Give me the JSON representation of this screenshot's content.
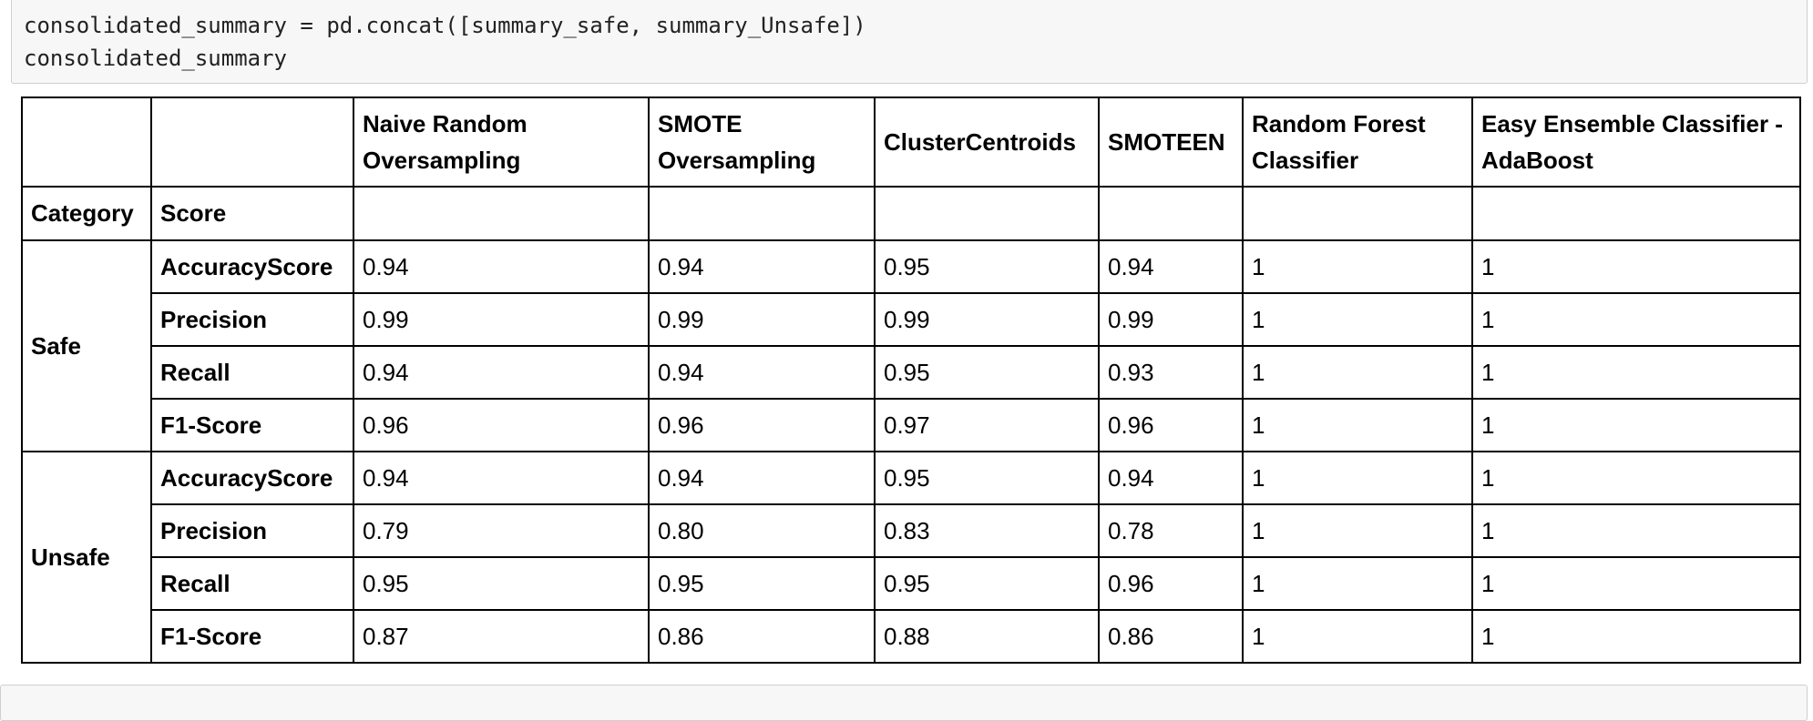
{
  "code_cell": {
    "lines": [
      "consolidated_summary = pd.concat([summary_safe, summary_Unsafe])",
      "consolidated_summary"
    ]
  },
  "table": {
    "columns": [
      "Naive Random Oversampling",
      "SMOTE Oversampling",
      "ClusterCentroids",
      "SMOTEEN",
      "Random Forest Classifier",
      "Easy Ensemble Classifier -AdaBoost"
    ],
    "index_names": [
      "Category",
      "Score"
    ],
    "groups": [
      {
        "category": "Safe",
        "rows": [
          {
            "score": "AccuracyScore",
            "values": [
              "0.94",
              "0.94",
              "0.95",
              "0.94",
              "1",
              "1"
            ]
          },
          {
            "score": "Precision",
            "values": [
              "0.99",
              "0.99",
              "0.99",
              "0.99",
              "1",
              "1"
            ]
          },
          {
            "score": "Recall",
            "values": [
              "0.94",
              "0.94",
              "0.95",
              "0.93",
              "1",
              "1"
            ]
          },
          {
            "score": "F1-Score",
            "values": [
              "0.96",
              "0.96",
              "0.97",
              "0.96",
              "1",
              "1"
            ]
          }
        ]
      },
      {
        "category": "Unsafe",
        "rows": [
          {
            "score": "AccuracyScore",
            "values": [
              "0.94",
              "0.94",
              "0.95",
              "0.94",
              "1",
              "1"
            ]
          },
          {
            "score": "Precision",
            "values": [
              "0.79",
              "0.80",
              "0.83",
              "0.78",
              "1",
              "1"
            ]
          },
          {
            "score": "Recall",
            "values": [
              "0.95",
              "0.95",
              "0.95",
              "0.96",
              "1",
              "1"
            ]
          },
          {
            "score": "F1-Score",
            "values": [
              "0.87",
              "0.86",
              "0.88",
              "0.86",
              "1",
              "1"
            ]
          }
        ]
      }
    ]
  }
}
